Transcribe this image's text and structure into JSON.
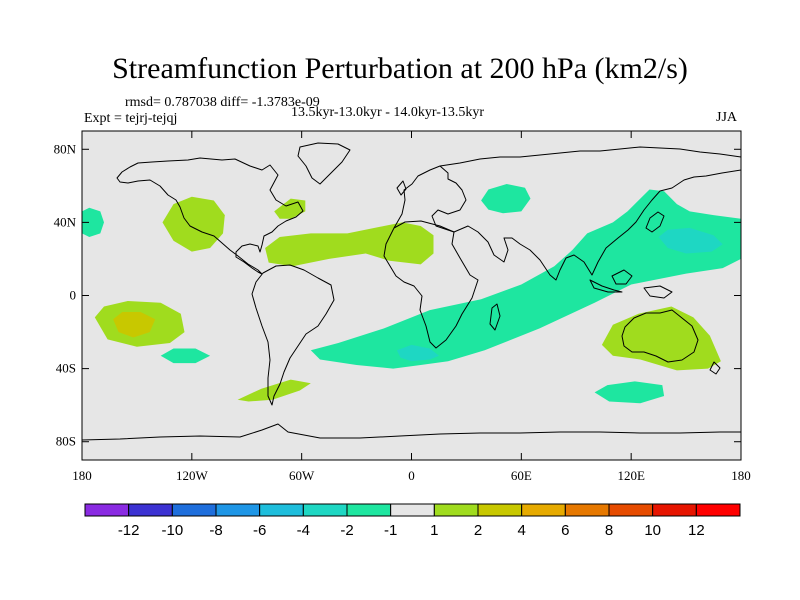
{
  "title": "Streamfunction Perturbation at 200 hPa (km2/s)",
  "stats_line": "rmsd= 0.787038 diff= -1.3783e-09",
  "expt_line": "Expt = tejrj-tejqj",
  "period_line": "13.5kyr-13.0kyr - 14.0kyr-13.5kyr",
  "season": "JJA",
  "map": {
    "projection": "cylindrical equidistant",
    "lon_range": [
      -180,
      180
    ],
    "lat_range": [
      -90,
      90
    ],
    "lon_ticks": [
      {
        "value": -180,
        "label": "180"
      },
      {
        "value": -120,
        "label": "120W"
      },
      {
        "value": -60,
        "label": "60W"
      },
      {
        "value": 0,
        "label": "0"
      },
      {
        "value": 60,
        "label": "60E"
      },
      {
        "value": 120,
        "label": "120E"
      },
      {
        "value": 180,
        "label": "180"
      }
    ],
    "lat_ticks": [
      {
        "value": 80,
        "label": "80N"
      },
      {
        "value": 40,
        "label": "40N"
      },
      {
        "value": 0,
        "label": "0"
      },
      {
        "value": -40,
        "label": "40S"
      },
      {
        "value": -80,
        "label": "80S"
      }
    ],
    "background_color": "#e6e6e6"
  },
  "colorbar": {
    "labels": [
      "-12",
      "-10",
      "-8",
      "-6",
      "-4",
      "-2",
      "-1",
      "1",
      "2",
      "4",
      "6",
      "8",
      "10",
      "12"
    ],
    "colors": [
      "#8a2be2",
      "#3c32d2",
      "#1e6edc",
      "#1e96e6",
      "#1ebedc",
      "#1ed7c3",
      "#1ee6a0",
      "#e6e6e6",
      "#a0dc1e",
      "#c8c800",
      "#e6aa00",
      "#e67800",
      "#e64b00",
      "#e61400",
      "#ff0000"
    ]
  },
  "anomalies": [
    {
      "name": "east-pacific-negative",
      "level": "-1",
      "color": "#1ee6a0",
      "points": [
        [
          -180,
          46
        ],
        [
          -176,
          48
        ],
        [
          -170,
          46
        ],
        [
          -168,
          40
        ],
        [
          -170,
          34
        ],
        [
          -176,
          32
        ],
        [
          -180,
          34
        ]
      ]
    },
    {
      "name": "north-america-positive",
      "level": "1",
      "color": "#a0dc1e",
      "points": [
        [
          -136,
          40
        ],
        [
          -130,
          50
        ],
        [
          -120,
          54
        ],
        [
          -108,
          52
        ],
        [
          -102,
          44
        ],
        [
          -103,
          34
        ],
        [
          -110,
          26
        ],
        [
          -120,
          24
        ],
        [
          -130,
          30
        ]
      ]
    },
    {
      "name": "newfoundland-positive",
      "level": "1",
      "color": "#a0dc1e",
      "points": [
        [
          -75,
          46
        ],
        [
          -66,
          53
        ],
        [
          -58,
          52
        ],
        [
          -58,
          46
        ],
        [
          -66,
          42
        ],
        [
          -72,
          42
        ]
      ]
    },
    {
      "name": "atlantic-africa-positive",
      "level": "1",
      "color": "#a0dc1e",
      "points": [
        [
          -80,
          26
        ],
        [
          -72,
          32
        ],
        [
          -55,
          34
        ],
        [
          -35,
          34
        ],
        [
          -15,
          38
        ],
        [
          -5,
          40
        ],
        [
          5,
          38
        ],
        [
          12,
          33
        ],
        [
          12,
          23
        ],
        [
          5,
          17
        ],
        [
          -12,
          19
        ],
        [
          -25,
          23
        ],
        [
          -45,
          20
        ],
        [
          -65,
          16
        ],
        [
          -78,
          18
        ]
      ]
    },
    {
      "name": "north-asia-negative",
      "level": "-1",
      "color": "#1ee6a0",
      "points": [
        [
          38,
          52
        ],
        [
          42,
          58
        ],
        [
          52,
          61
        ],
        [
          62,
          59
        ],
        [
          65,
          53
        ],
        [
          60,
          46
        ],
        [
          50,
          45
        ],
        [
          42,
          47
        ]
      ]
    },
    {
      "name": "east-asia-pacific-negative",
      "level": "-1",
      "color": "#1ee6a0",
      "points": [
        [
          -55,
          -30
        ],
        [
          -40,
          -26
        ],
        [
          -15,
          -18
        ],
        [
          10,
          -8
        ],
        [
          38,
          -2
        ],
        [
          60,
          6
        ],
        [
          78,
          16
        ],
        [
          88,
          25
        ],
        [
          96,
          34
        ],
        [
          110,
          40
        ],
        [
          118,
          46
        ],
        [
          125,
          53
        ],
        [
          130,
          58
        ],
        [
          138,
          57
        ],
        [
          145,
          50
        ],
        [
          152,
          46
        ],
        [
          165,
          44
        ],
        [
          180,
          42
        ],
        [
          180,
          20
        ],
        [
          170,
          15
        ],
        [
          150,
          12
        ],
        [
          120,
          6
        ],
        [
          100,
          -4
        ],
        [
          70,
          -18
        ],
        [
          40,
          -30
        ],
        [
          20,
          -36
        ],
        [
          5,
          -38
        ],
        [
          -10,
          -40
        ],
        [
          -30,
          -38
        ],
        [
          -50,
          -35
        ]
      ]
    },
    {
      "name": "west-pacific-core-negative",
      "level": "-2",
      "color": "#1ed7c3",
      "points": [
        [
          135,
          32
        ],
        [
          140,
          36
        ],
        [
          152,
          37
        ],
        [
          165,
          33
        ],
        [
          170,
          28
        ],
        [
          164,
          24
        ],
        [
          150,
          23
        ],
        [
          140,
          26
        ]
      ]
    },
    {
      "name": "south-indian-core-negative",
      "level": "-2",
      "color": "#1ed7c3",
      "points": [
        [
          -8,
          -30
        ],
        [
          0,
          -27
        ],
        [
          10,
          -29
        ],
        [
          15,
          -33
        ],
        [
          10,
          -35
        ],
        [
          0,
          -36
        ],
        [
          -6,
          -34
        ]
      ]
    },
    {
      "name": "australia-positive",
      "level": "1",
      "color": "#a0dc1e",
      "points": [
        [
          104,
          -27
        ],
        [
          110,
          -16
        ],
        [
          124,
          -10
        ],
        [
          142,
          -6
        ],
        [
          154,
          -12
        ],
        [
          163,
          -22
        ],
        [
          169,
          -36
        ],
        [
          162,
          -40
        ],
        [
          145,
          -41
        ],
        [
          125,
          -35
        ],
        [
          110,
          -33
        ]
      ]
    },
    {
      "name": "south-pacific-positive",
      "level": "1",
      "color": "#a0dc1e",
      "points": [
        [
          -173,
          -12
        ],
        [
          -168,
          -6
        ],
        [
          -155,
          -3
        ],
        [
          -137,
          -4
        ],
        [
          -126,
          -10
        ],
        [
          -124,
          -20
        ],
        [
          -132,
          -26
        ],
        [
          -150,
          -28
        ],
        [
          -166,
          -24
        ]
      ]
    },
    {
      "name": "south-pacific-core-positive",
      "level": "2",
      "color": "#c8c800",
      "points": [
        [
          -163,
          -13
        ],
        [
          -158,
          -9
        ],
        [
          -148,
          -9
        ],
        [
          -140,
          -13
        ],
        [
          -143,
          -20
        ],
        [
          -152,
          -23
        ],
        [
          -160,
          -20
        ]
      ]
    },
    {
      "name": "south-pacific-minor-negative",
      "level": "-1",
      "color": "#1ee6a0",
      "points": [
        [
          -137,
          -33
        ],
        [
          -130,
          -29
        ],
        [
          -118,
          -29
        ],
        [
          -110,
          -33
        ],
        [
          -118,
          -37
        ],
        [
          -130,
          -37
        ]
      ]
    },
    {
      "name": "south-america-positive",
      "level": "1",
      "color": "#a0dc1e",
      "points": [
        [
          -95,
          -57
        ],
        [
          -82,
          -51
        ],
        [
          -66,
          -46
        ],
        [
          -55,
          -48
        ],
        [
          -61,
          -52
        ],
        [
          -76,
          -57
        ],
        [
          -89,
          -58
        ]
      ]
    },
    {
      "name": "southern-ocean-negative",
      "level": "-1",
      "color": "#1ee6a0",
      "points": [
        [
          100,
          -53
        ],
        [
          107,
          -49
        ],
        [
          122,
          -47
        ],
        [
          137,
          -49
        ],
        [
          138,
          -55
        ],
        [
          125,
          -59
        ],
        [
          108,
          -58
        ]
      ]
    }
  ]
}
